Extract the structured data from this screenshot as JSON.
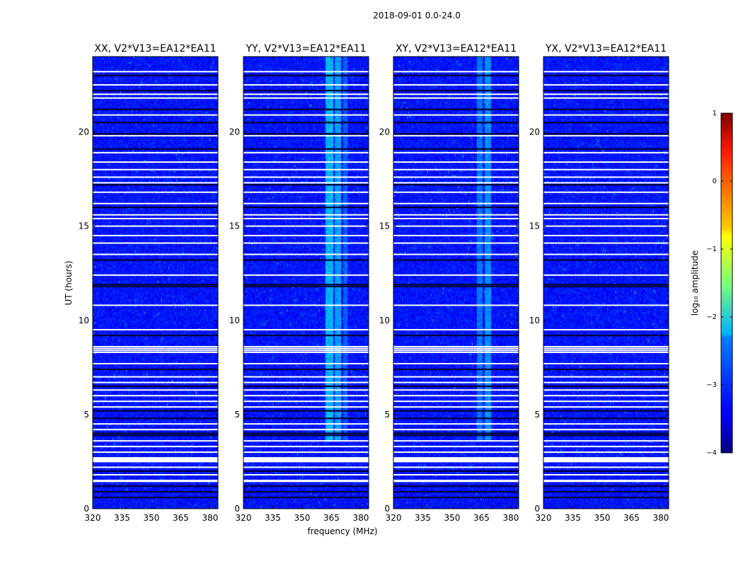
{
  "chart_data": {
    "type": "heatmap",
    "suptitle": "2018-09-01 0.0-24.0",
    "xlabel": "frequency (MHz)",
    "ylabel": "UT (hours)",
    "xlim": [
      320,
      384
    ],
    "ylim": [
      0,
      24
    ],
    "xticks": [
      320,
      335,
      350,
      365,
      380
    ],
    "yticks": [
      0,
      5,
      10,
      15,
      20
    ],
    "colorbar": {
      "label": "log₁₀ amplitude",
      "range": [
        -4,
        1
      ],
      "ticks": [
        1,
        0,
        -1,
        -2,
        -3,
        -4
      ],
      "tick_labels": [
        "1",
        "0",
        "−1",
        "−2",
        "−3",
        "−4"
      ],
      "colormap": "jet",
      "background_level": -3.3
    },
    "panels": [
      {
        "title": "XX, V2*V13=EA12*EA11",
        "rfi_bands_mhz": []
      },
      {
        "title": "YY, V2*V13=EA12*EA11",
        "rfi_bands_mhz": [
          [
            362,
            366,
            -2.5
          ],
          [
            366.5,
            370,
            -2.6
          ],
          [
            371,
            373,
            -2.9
          ]
        ]
      },
      {
        "title": "XY, V2*V13=EA12*EA11",
        "rfi_bands_mhz": [
          [
            362.5,
            365.5,
            -2.8
          ],
          [
            366.5,
            370,
            -2.7
          ]
        ]
      },
      {
        "title": "YX, V2*V13=EA12*EA11",
        "rfi_bands_mhz": []
      }
    ],
    "flagged_rows_ut": [
      2.5,
      2.55,
      2.6,
      2.65,
      2.7,
      1.45,
      1.5,
      1.8,
      2.2,
      3.0,
      3.3,
      3.6,
      4.2,
      4.5,
      5.4,
      5.7,
      6.0,
      6.3,
      6.7,
      7.0,
      7.7,
      8.3,
      8.4,
      8.5,
      8.6,
      9.5,
      10.8,
      12.4,
      13.5,
      14.1,
      14.5,
      15.0,
      15.4,
      15.6,
      16.2,
      16.8,
      17.3,
      17.6,
      18.0,
      18.4,
      18.9,
      19.8,
      20.9,
      21.8,
      22.0,
      22.5,
      23.2
    ],
    "dark_rows_ut": [
      0.6,
      0.9,
      1.2,
      2.0,
      3.9,
      4.0,
      4.8,
      5.2,
      6.5,
      7.4,
      9.2,
      11.8,
      11.9,
      13.2,
      16.0,
      17.2,
      19.1,
      19.9,
      20.5,
      21.2,
      22.2,
      23.0
    ]
  }
}
